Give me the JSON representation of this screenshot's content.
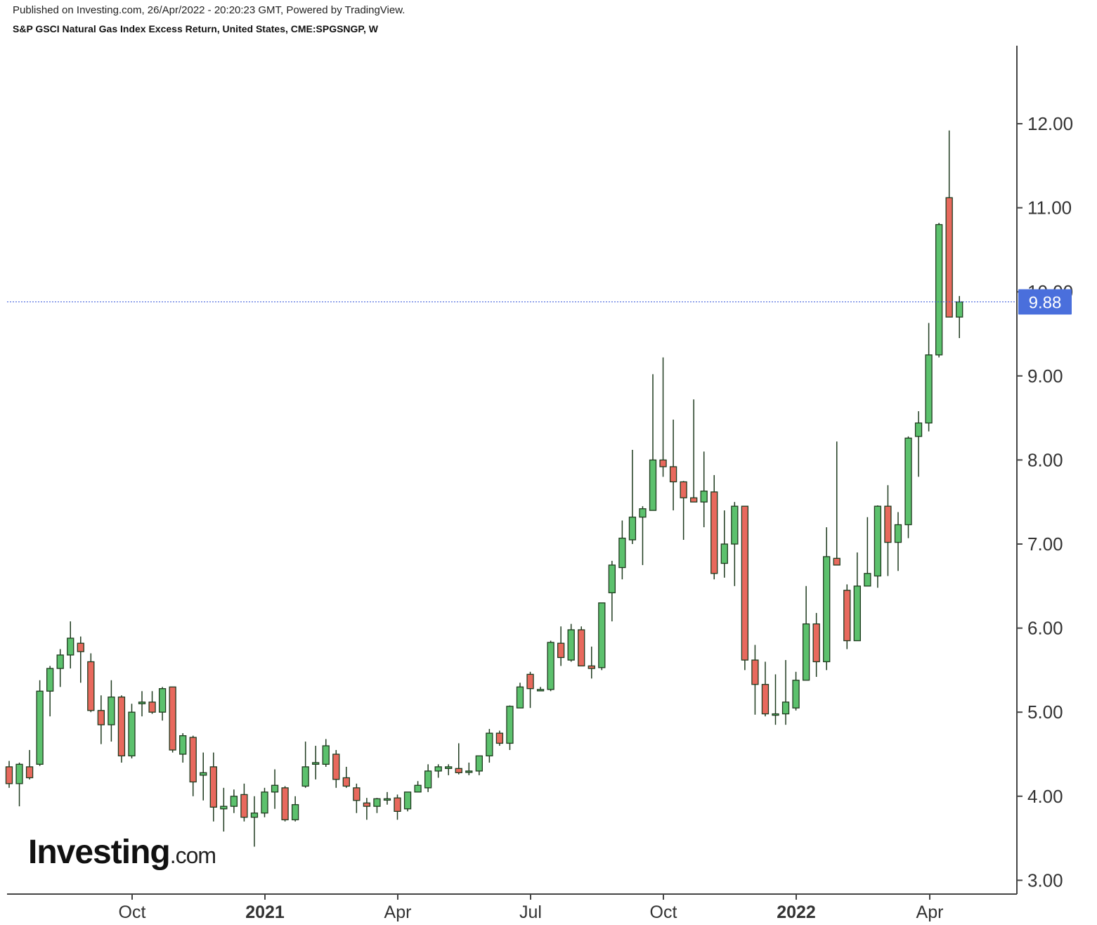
{
  "header": {
    "published": "Published on Investing.com, 26/Apr/2022 - 20:20:23 GMT, Powered by TradingView.",
    "title": "S&P GSCI Natural Gas Index Excess Return, United States, CME:SPGSNGP, W"
  },
  "watermark": {
    "logo_text": "Investing",
    "logo_suffix": ".com"
  },
  "colors": {
    "up": "#5cc16d",
    "down": "#e8695d",
    "wick": "#1e3a1e",
    "price_line": "#3b5bdb"
  },
  "chart_data": {
    "type": "candlestick",
    "interval": "weekly",
    "ylim": [
      2.9,
      12.6
    ],
    "y_ticks": [
      "3.00",
      "4.00",
      "5.00",
      "6.00",
      "7.00",
      "8.00",
      "9.00",
      "10.00",
      "11.00",
      "12.00"
    ],
    "x_ticks": [
      {
        "label": "Oct",
        "bold": false
      },
      {
        "label": "2021",
        "bold": true
      },
      {
        "label": "Apr",
        "bold": false
      },
      {
        "label": "Jul",
        "bold": false
      },
      {
        "label": "Oct",
        "bold": false
      },
      {
        "label": "2022",
        "bold": true
      },
      {
        "label": "Apr",
        "bold": false
      }
    ],
    "last_price": "9.88",
    "last_value": 9.88,
    "candles": [
      [
        4.35,
        4.42,
        4.1,
        4.15
      ],
      [
        4.15,
        4.4,
        3.88,
        4.38
      ],
      [
        4.35,
        4.55,
        4.2,
        4.22
      ],
      [
        4.38,
        5.38,
        4.36,
        5.25
      ],
      [
        5.25,
        5.55,
        4.95,
        5.52
      ],
      [
        5.52,
        5.75,
        5.3,
        5.68
      ],
      [
        5.68,
        6.08,
        5.52,
        5.88
      ],
      [
        5.82,
        5.9,
        5.35,
        5.72
      ],
      [
        5.6,
        5.7,
        5.0,
        5.02
      ],
      [
        5.02,
        5.2,
        4.62,
        4.85
      ],
      [
        4.85,
        5.38,
        4.65,
        5.18
      ],
      [
        5.18,
        5.2,
        4.4,
        4.48
      ],
      [
        4.48,
        5.1,
        4.45,
        5.0
      ],
      [
        5.1,
        5.25,
        4.95,
        5.12
      ],
      [
        5.12,
        5.25,
        4.98,
        5.0
      ],
      [
        5.0,
        5.3,
        4.9,
        5.28
      ],
      [
        5.3,
        5.3,
        4.52,
        4.55
      ],
      [
        4.5,
        4.75,
        4.4,
        4.72
      ],
      [
        4.7,
        4.72,
        4.0,
        4.17
      ],
      [
        4.25,
        4.52,
        3.95,
        4.28
      ],
      [
        4.35,
        4.52,
        3.7,
        3.87
      ],
      [
        3.85,
        4.1,
        3.58,
        3.88
      ],
      [
        3.88,
        4.08,
        3.8,
        4.0
      ],
      [
        4.02,
        4.15,
        3.7,
        3.75
      ],
      [
        3.75,
        4.0,
        3.4,
        3.8
      ],
      [
        3.8,
        4.1,
        3.75,
        4.05
      ],
      [
        4.05,
        4.32,
        3.85,
        4.13
      ],
      [
        4.1,
        4.12,
        3.7,
        3.72
      ],
      [
        3.72,
        4.0,
        3.7,
        3.9
      ],
      [
        4.12,
        4.65,
        4.1,
        4.35
      ],
      [
        4.38,
        4.6,
        4.2,
        4.4
      ],
      [
        4.38,
        4.68,
        4.35,
        4.6
      ],
      [
        4.5,
        4.55,
        4.1,
        4.2
      ],
      [
        4.22,
        4.35,
        4.1,
        4.12
      ],
      [
        4.1,
        4.15,
        3.8,
        3.95
      ],
      [
        3.92,
        3.98,
        3.72,
        3.88
      ],
      [
        3.88,
        3.98,
        3.8,
        3.97
      ],
      [
        3.96,
        4.05,
        3.9,
        3.97
      ],
      [
        3.98,
        4.02,
        3.72,
        3.82
      ],
      [
        3.85,
        4.05,
        3.82,
        4.05
      ],
      [
        4.05,
        4.18,
        4.05,
        4.13
      ],
      [
        4.1,
        4.38,
        4.05,
        4.3
      ],
      [
        4.3,
        4.38,
        4.22,
        4.35
      ],
      [
        4.33,
        4.38,
        4.25,
        4.35
      ],
      [
        4.33,
        4.63,
        4.26,
        4.28
      ],
      [
        4.3,
        4.4,
        4.25,
        4.3
      ],
      [
        4.3,
        4.48,
        4.25,
        4.48
      ],
      [
        4.48,
        4.8,
        4.4,
        4.75
      ],
      [
        4.75,
        4.78,
        4.6,
        4.63
      ],
      [
        4.63,
        5.08,
        4.55,
        5.07
      ],
      [
        5.05,
        5.35,
        5.05,
        5.3
      ],
      [
        5.45,
        5.48,
        5.05,
        5.28
      ],
      [
        5.27,
        5.3,
        5.25,
        5.27
      ],
      [
        5.27,
        5.85,
        5.25,
        5.83
      ],
      [
        5.82,
        6.02,
        5.55,
        5.65
      ],
      [
        5.62,
        6.05,
        5.6,
        5.98
      ],
      [
        5.98,
        6.02,
        5.55,
        5.55
      ],
      [
        5.55,
        5.78,
        5.4,
        5.52
      ],
      [
        5.53,
        6.3,
        5.5,
        6.3
      ],
      [
        6.42,
        6.8,
        6.08,
        6.75
      ],
      [
        6.72,
        7.28,
        6.58,
        7.07
      ],
      [
        7.05,
        8.12,
        7.0,
        7.32
      ],
      [
        7.32,
        7.45,
        6.75,
        7.42
      ],
      [
        7.4,
        9.02,
        7.4,
        8.0
      ],
      [
        8.0,
        9.22,
        7.8,
        7.92
      ],
      [
        7.92,
        8.48,
        7.4,
        7.74
      ],
      [
        7.74,
        7.75,
        7.05,
        7.55
      ],
      [
        7.55,
        8.72,
        7.5,
        7.5
      ],
      [
        7.5,
        8.1,
        7.2,
        7.63
      ],
      [
        7.62,
        7.82,
        6.58,
        6.65
      ],
      [
        6.77,
        7.4,
        6.6,
        7.0
      ],
      [
        7.0,
        7.5,
        6.5,
        7.45
      ],
      [
        7.45,
        7.45,
        5.5,
        5.62
      ],
      [
        5.62,
        5.8,
        4.97,
        5.33
      ],
      [
        5.33,
        5.6,
        4.95,
        4.98
      ],
      [
        4.98,
        5.45,
        4.85,
        4.98
      ],
      [
        4.98,
        5.62,
        4.85,
        5.12
      ],
      [
        5.05,
        5.48,
        5.02,
        5.38
      ],
      [
        5.38,
        6.5,
        5.38,
        6.05
      ],
      [
        6.05,
        6.18,
        5.42,
        5.6
      ],
      [
        5.6,
        7.2,
        5.5,
        6.85
      ],
      [
        6.83,
        8.22,
        6.75,
        6.75
      ],
      [
        6.45,
        6.52,
        5.75,
        5.85
      ],
      [
        5.85,
        6.9,
        5.85,
        6.5
      ],
      [
        6.5,
        7.32,
        6.5,
        6.65
      ],
      [
        6.62,
        7.46,
        6.48,
        7.45
      ],
      [
        7.45,
        7.7,
        6.62,
        7.02
      ],
      [
        7.02,
        7.38,
        6.68,
        7.23
      ],
      [
        7.23,
        8.28,
        7.07,
        8.26
      ],
      [
        8.28,
        8.58,
        7.8,
        8.44
      ],
      [
        8.44,
        9.63,
        8.34,
        9.25
      ],
      [
        9.25,
        10.82,
        9.22,
        10.8
      ],
      [
        11.12,
        11.92,
        9.7,
        9.7
      ],
      [
        9.7,
        9.95,
        9.45,
        9.88
      ]
    ]
  }
}
